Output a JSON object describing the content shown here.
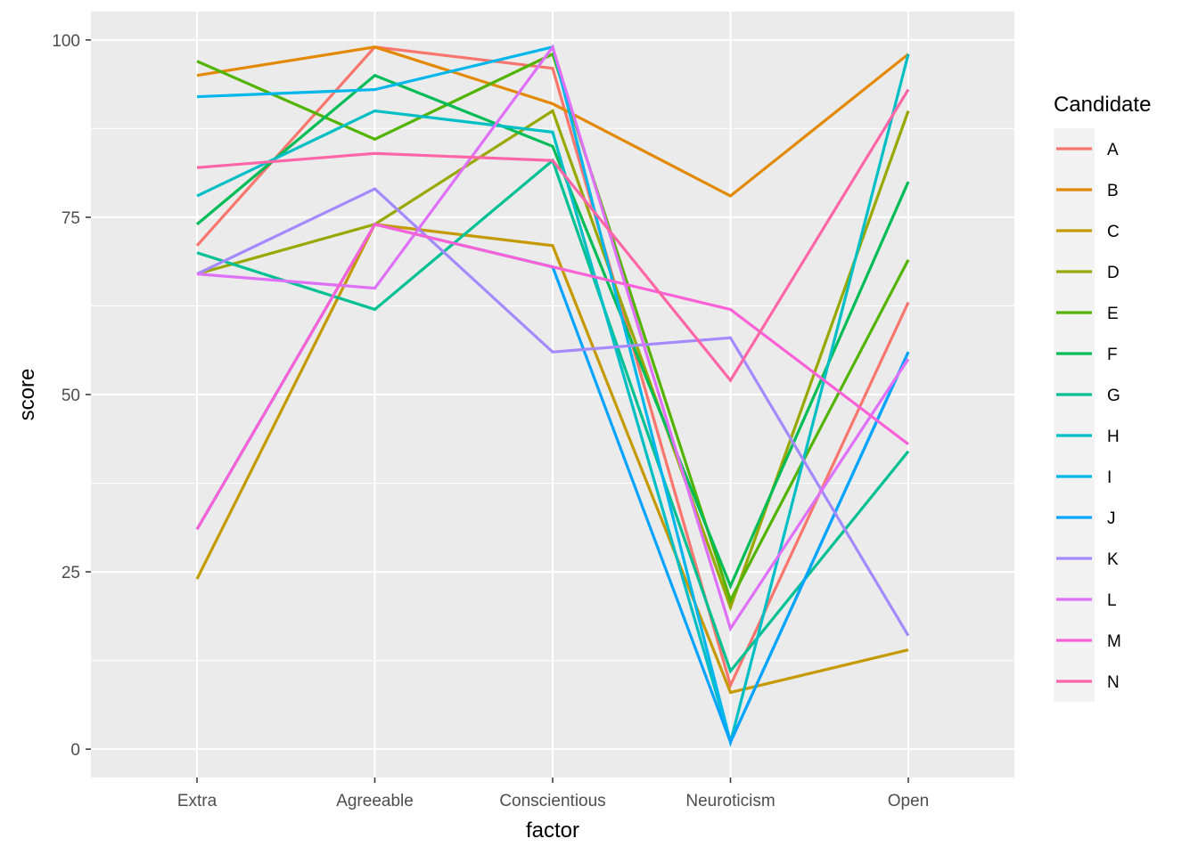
{
  "chart_data": {
    "type": "line",
    "xlabel": "factor",
    "ylabel": "score",
    "categories": [
      "Extra",
      "Agreeable",
      "Conscientious",
      "Neuroticism",
      "Open"
    ],
    "ylim": [
      -4,
      104
    ],
    "yticks": [
      0,
      25,
      50,
      75,
      100
    ],
    "grid": true,
    "legend": {
      "title": "Candidate",
      "position": "right"
    },
    "series": [
      {
        "name": "A",
        "color": "#F8766D",
        "values": [
          71,
          99,
          96,
          9,
          63
        ]
      },
      {
        "name": "B",
        "color": "#E38900",
        "values": [
          95,
          99,
          91,
          78,
          98
        ]
      },
      {
        "name": "C",
        "color": "#C49A00",
        "values": [
          24,
          74,
          71,
          8,
          14
        ]
      },
      {
        "name": "D",
        "color": "#99A800",
        "values": [
          67,
          74,
          90,
          20,
          90
        ]
      },
      {
        "name": "E",
        "color": "#53B400",
        "values": [
          97,
          86,
          98,
          21,
          69
        ]
      },
      {
        "name": "F",
        "color": "#00BC56",
        "values": [
          74,
          95,
          85,
          23,
          80
        ]
      },
      {
        "name": "G",
        "color": "#00C094",
        "values": [
          70,
          62,
          83,
          11,
          42
        ]
      },
      {
        "name": "H",
        "color": "#00BFC4",
        "values": [
          78,
          90,
          87,
          1,
          98
        ]
      },
      {
        "name": "I",
        "color": "#00B6EB",
        "values": [
          92,
          93,
          99,
          1,
          56
        ]
      },
      {
        "name": "J",
        "color": "#06A4FF",
        "values": [
          31,
          74,
          68,
          1,
          56
        ]
      },
      {
        "name": "K",
        "color": "#A58AFF",
        "values": [
          67,
          79,
          56,
          58,
          16
        ]
      },
      {
        "name": "L",
        "color": "#DF70F8",
        "values": [
          67,
          65,
          99,
          17,
          55
        ]
      },
      {
        "name": "M",
        "color": "#FB61D7",
        "values": [
          31,
          74,
          68,
          62,
          43
        ]
      },
      {
        "name": "N",
        "color": "#FF66A8",
        "values": [
          82,
          84,
          83,
          52,
          93
        ]
      }
    ]
  }
}
